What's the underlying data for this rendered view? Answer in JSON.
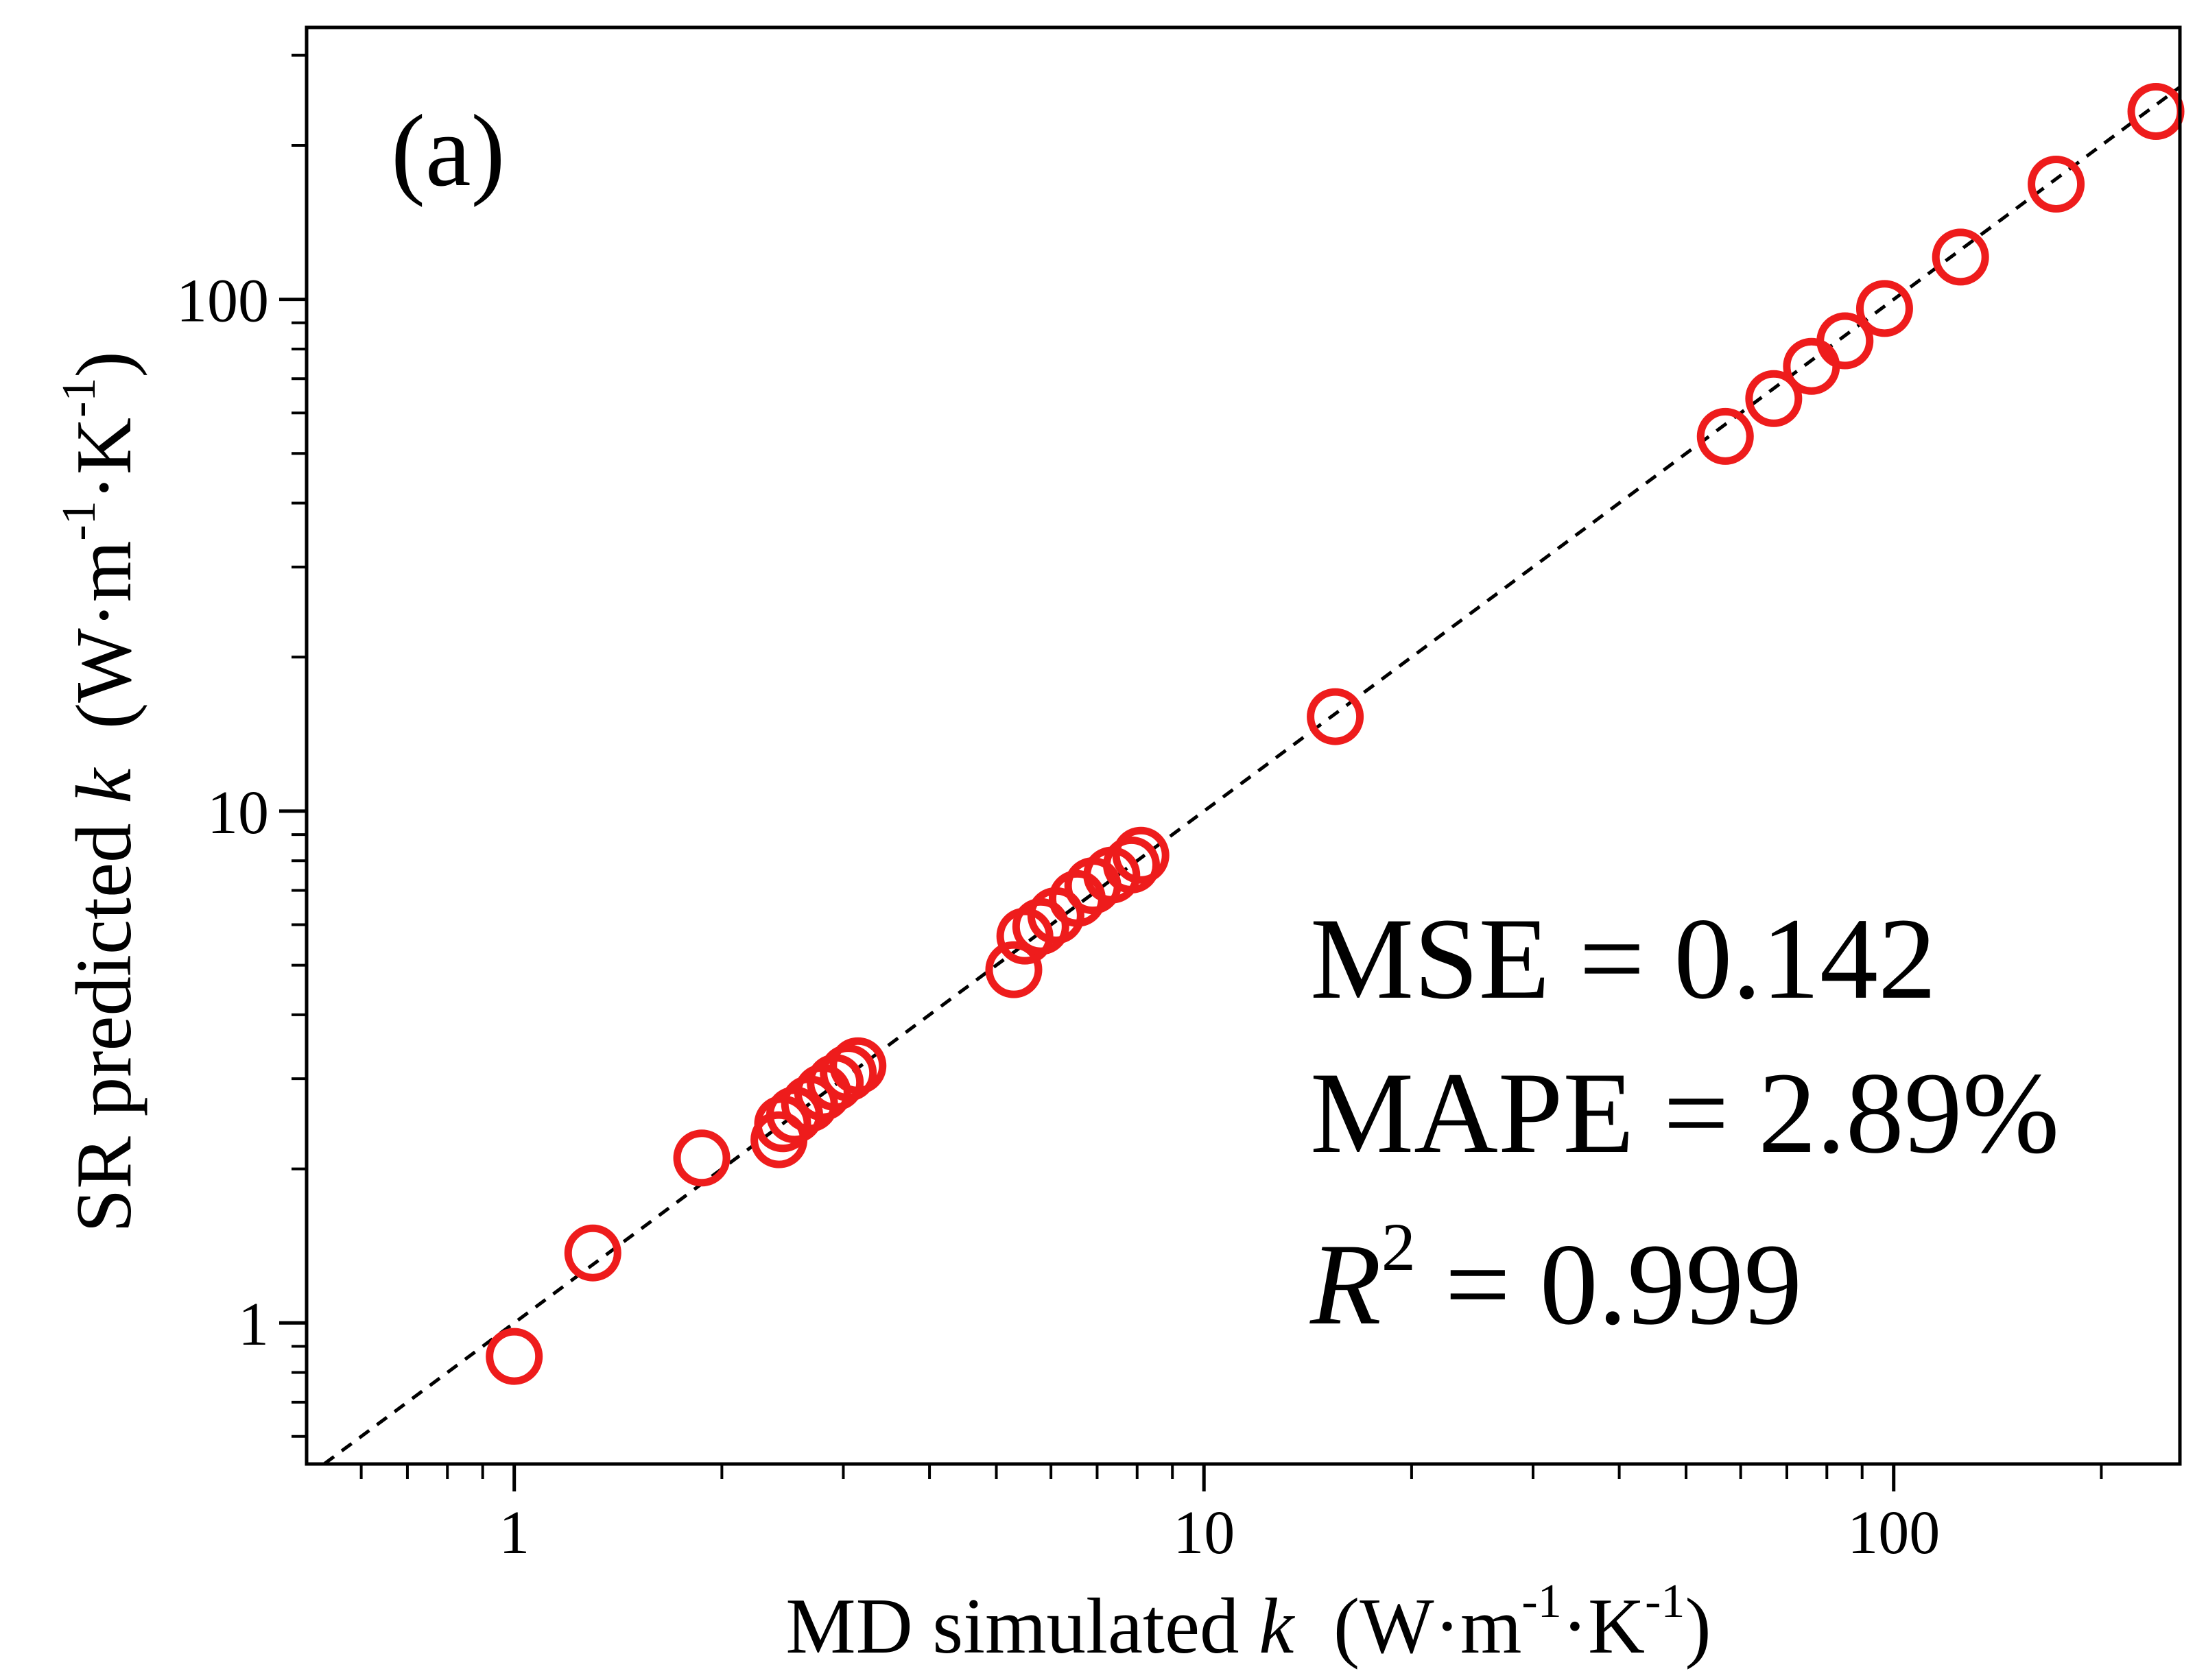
{
  "chart_data": {
    "type": "scatter",
    "panel_label": "(a)",
    "xlabel": {
      "pre": "MD simulated ",
      "var": "k",
      "post": "  (W·m",
      "sup1": "-1",
      "mid": "·K",
      "sup2": "-1",
      "close": ")"
    },
    "ylabel": {
      "pre": "SR predicted ",
      "var": "k",
      "post": "  (W·m",
      "sup1": "-1",
      "mid": "·K",
      "sup2": "-1",
      "close": ")"
    },
    "x_scale": "log",
    "y_scale": "log",
    "xlim": [
      0.5,
      260
    ],
    "ylim": [
      0.53,
      340
    ],
    "x_ticks": [
      1,
      10,
      100
    ],
    "x_tick_labels": [
      "1",
      "10",
      "100"
    ],
    "y_ticks": [
      1,
      10,
      100
    ],
    "y_tick_labels": [
      "1",
      "10",
      "100"
    ],
    "grid": false,
    "reference_line": "y = x",
    "marker_color": "#ee1c1c",
    "points": [
      {
        "x": 1.0,
        "y": 0.86
      },
      {
        "x": 1.3,
        "y": 1.37
      },
      {
        "x": 1.87,
        "y": 2.1
      },
      {
        "x": 2.42,
        "y": 2.28
      },
      {
        "x": 2.45,
        "y": 2.45
      },
      {
        "x": 2.55,
        "y": 2.55
      },
      {
        "x": 2.68,
        "y": 2.68
      },
      {
        "x": 2.8,
        "y": 2.82
      },
      {
        "x": 2.92,
        "y": 2.95
      },
      {
        "x": 3.05,
        "y": 3.08
      },
      {
        "x": 3.15,
        "y": 3.18
      },
      {
        "x": 5.3,
        "y": 4.9
      },
      {
        "x": 5.5,
        "y": 5.7
      },
      {
        "x": 5.8,
        "y": 5.95
      },
      {
        "x": 6.1,
        "y": 6.25
      },
      {
        "x": 6.55,
        "y": 6.75
      },
      {
        "x": 6.9,
        "y": 7.15
      },
      {
        "x": 7.35,
        "y": 7.5
      },
      {
        "x": 7.85,
        "y": 7.85
      },
      {
        "x": 8.1,
        "y": 8.2
      },
      {
        "x": 15.5,
        "y": 15.3
      },
      {
        "x": 57,
        "y": 54
      },
      {
        "x": 67,
        "y": 64
      },
      {
        "x": 76,
        "y": 74
      },
      {
        "x": 85,
        "y": 83
      },
      {
        "x": 97,
        "y": 96
      },
      {
        "x": 125,
        "y": 121
      },
      {
        "x": 172,
        "y": 168
      },
      {
        "x": 240,
        "y": 233
      }
    ],
    "annotations": {
      "mse": "MSE = 0.142",
      "mape": "MAPE = 2.89%",
      "r2_var": "R",
      "r2_sup": "2",
      "r2_rest": " = 0.999"
    }
  }
}
